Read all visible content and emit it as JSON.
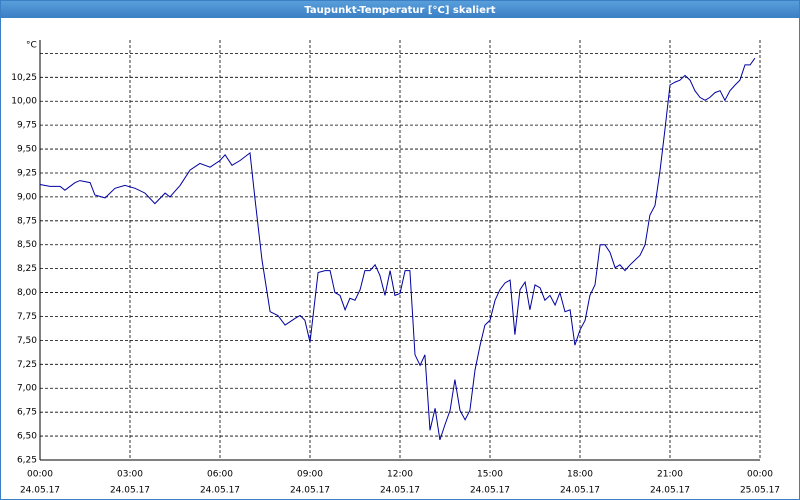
{
  "chart_data": {
    "type": "line",
    "title": "Taupunkt-Temperatur [°C] skaliert",
    "ylabel": "°C",
    "xlim": [
      0,
      24
    ],
    "ylim": [
      6.25,
      10.64
    ],
    "xticks": [
      {
        "value": 0,
        "label": "00:00",
        "date": "24.05.17"
      },
      {
        "value": 3,
        "label": "03:00",
        "date": "24.05.17"
      },
      {
        "value": 6,
        "label": "06:00",
        "date": "24.05.17"
      },
      {
        "value": 9,
        "label": "09:00",
        "date": "24.05.17"
      },
      {
        "value": 12,
        "label": "12:00",
        "date": "24.05.17"
      },
      {
        "value": 15,
        "label": "15:00",
        "date": "24.05.17"
      },
      {
        "value": 18,
        "label": "18:00",
        "date": "24.05.17"
      },
      {
        "value": 21,
        "label": "21:00",
        "date": "24.05.17"
      },
      {
        "value": 24,
        "label": "00:00",
        "date": "25.05.17"
      }
    ],
    "yticks": [
      {
        "value": 6.25,
        "label": "6,25"
      },
      {
        "value": 6.5,
        "label": "6,50"
      },
      {
        "value": 6.75,
        "label": "6,75"
      },
      {
        "value": 7,
        "label": "7,00"
      },
      {
        "value": 7.25,
        "label": "7,25"
      },
      {
        "value": 7.5,
        "label": "7,50"
      },
      {
        "value": 7.75,
        "label": "7,75"
      },
      {
        "value": 8,
        "label": "8,00"
      },
      {
        "value": 8.25,
        "label": "8,25"
      },
      {
        "value": 8.5,
        "label": "8,50"
      },
      {
        "value": 8.75,
        "label": "8,75"
      },
      {
        "value": 9,
        "label": "9,00"
      },
      {
        "value": 9.25,
        "label": "9,25"
      },
      {
        "value": 9.5,
        "label": "9,50"
      },
      {
        "value": 9.75,
        "label": "9,75"
      },
      {
        "value": 10,
        "label": "10,00"
      },
      {
        "value": 10.25,
        "label": "10,25"
      },
      {
        "value": 10.5,
        "label": null
      }
    ],
    "grid": true,
    "series": [
      {
        "color": "#0000a0",
        "x": [
          0,
          0.33,
          0.67,
          0.83,
          1.17,
          1.33,
          1.67,
          1.83,
          2.17,
          2.5,
          2.83,
          3.17,
          3.5,
          3.83,
          4.17,
          4.33,
          4.67,
          5,
          5.33,
          5.67,
          6,
          6.17,
          6.4,
          6.67,
          7,
          7.17,
          7.4,
          7.67,
          7.93,
          8.17,
          8.5,
          8.67,
          8.83,
          9,
          9.27,
          9.5,
          9.67,
          9.83,
          10,
          10.17,
          10.33,
          10.5,
          10.67,
          10.83,
          11,
          11.17,
          11.33,
          11.5,
          11.67,
          11.83,
          12,
          12.17,
          12.33,
          12.5,
          12.67,
          12.83,
          13,
          13.17,
          13.33,
          13.5,
          13.67,
          13.83,
          14,
          14.17,
          14.33,
          14.5,
          14.67,
          14.83,
          15,
          15.17,
          15.33,
          15.5,
          15.67,
          15.83,
          16,
          16.17,
          16.33,
          16.5,
          16.67,
          16.83,
          17,
          17.17,
          17.33,
          17.5,
          17.67,
          17.83,
          18,
          18.17,
          18.33,
          18.5,
          18.67,
          18.83,
          19,
          19.17,
          19.33,
          19.5,
          19.67,
          20,
          20.17,
          20.33,
          20.5,
          20.67,
          20.83,
          21,
          21.17,
          21.33,
          21.5,
          21.67,
          21.83,
          22,
          22.17,
          22.33,
          22.5,
          22.67,
          22.83,
          23,
          23.17,
          23.33,
          23.5,
          23.67,
          23.83
        ],
        "values": [
          9.13,
          9.11,
          9.11,
          9.07,
          9.15,
          9.17,
          9.15,
          9.02,
          8.99,
          9.09,
          9.12,
          9.09,
          9.04,
          8.93,
          9.04,
          9.0,
          9.12,
          9.28,
          9.35,
          9.31,
          9.38,
          9.44,
          9.33,
          9.38,
          9.46,
          8.97,
          8.34,
          7.8,
          7.76,
          7.66,
          7.73,
          7.76,
          7.71,
          7.48,
          8.21,
          8.23,
          8.23,
          8.0,
          7.97,
          7.82,
          7.94,
          7.92,
          8.03,
          8.23,
          8.23,
          8.29,
          8.18,
          7.97,
          8.23,
          7.97,
          7.99,
          8.23,
          8.23,
          7.35,
          7.24,
          7.35,
          6.56,
          6.79,
          6.46,
          6.62,
          6.77,
          7.09,
          6.77,
          6.67,
          6.77,
          7.19,
          7.45,
          7.66,
          7.71,
          7.92,
          8.03,
          8.1,
          8.13,
          7.56,
          8.03,
          8.11,
          7.82,
          8.08,
          8.05,
          7.92,
          7.97,
          7.87,
          8.0,
          7.8,
          7.82,
          7.45,
          7.61,
          7.71,
          7.97,
          8.08,
          8.5,
          8.5,
          8.42,
          8.26,
          8.29,
          8.23,
          8.29,
          8.39,
          8.5,
          8.81,
          8.91,
          9.28,
          9.7,
          10.17,
          10.2,
          10.22,
          10.27,
          10.22,
          10.11,
          10.04,
          10.01,
          10.04,
          10.09,
          10.11,
          10.01,
          10.11,
          10.17,
          10.22,
          10.38,
          10.38,
          10.45
        ]
      }
    ]
  }
}
